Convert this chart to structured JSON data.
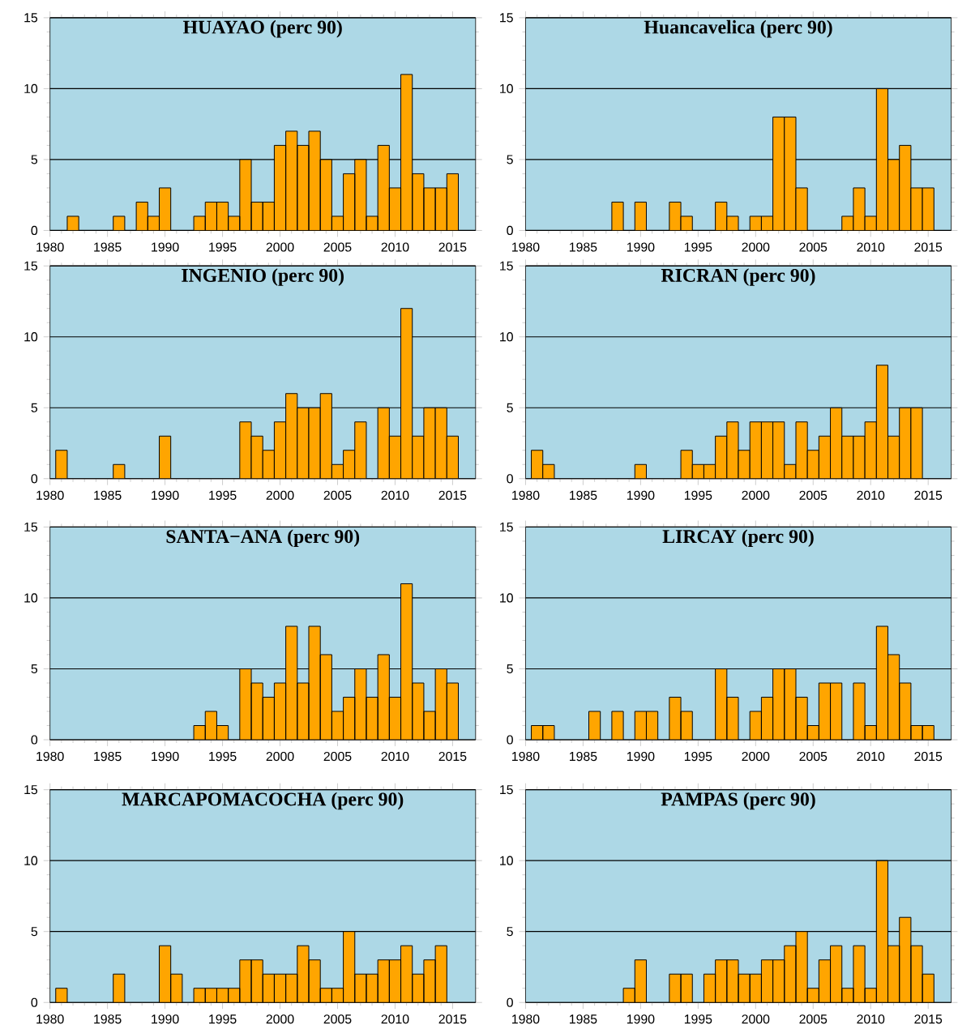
{
  "chart_data": [
    {
      "type": "bar",
      "title": "HUAYAO (perc 90)",
      "color": "#ffa500",
      "xlim": [
        1980,
        2017
      ],
      "xticks": [
        1980,
        1985,
        1990,
        1995,
        2000,
        2005,
        2010,
        2015
      ],
      "ylim": [
        0,
        15
      ],
      "yticks": [
        0,
        5,
        10,
        15
      ],
      "grid": "y",
      "x": [
        1982,
        1986,
        1988,
        1989,
        1990,
        1993,
        1994,
        1995,
        1996,
        1997,
        1998,
        1999,
        2000,
        2001,
        2002,
        2003,
        2004,
        2005,
        2006,
        2007,
        2008,
        2009,
        2010,
        2011,
        2012,
        2013,
        2014,
        2015
      ],
      "values": [
        1,
        1,
        2,
        1,
        3,
        1,
        2,
        2,
        1,
        5,
        2,
        2,
        6,
        7,
        6,
        7,
        5,
        1,
        4,
        5,
        1,
        6,
        3,
        11,
        4,
        3,
        3,
        4
      ]
    },
    {
      "type": "bar",
      "title": "Huancavelica (perc 90)",
      "color": "#ffa500",
      "xlim": [
        1980,
        2017
      ],
      "xticks": [
        1980,
        1985,
        1990,
        1995,
        2000,
        2005,
        2010,
        2015
      ],
      "ylim": [
        0,
        15
      ],
      "yticks": [
        0,
        5,
        10,
        15
      ],
      "grid": "y",
      "x": [
        1988,
        1990,
        1993,
        1994,
        1997,
        1998,
        2000,
        2001,
        2002,
        2003,
        2004,
        2008,
        2009,
        2010,
        2011,
        2012,
        2013,
        2014,
        2015
      ],
      "values": [
        2,
        2,
        2,
        1,
        2,
        1,
        1,
        1,
        8,
        8,
        3,
        1,
        3,
        1,
        10,
        5,
        6,
        3,
        3
      ]
    },
    {
      "type": "bar",
      "title": "INGENIO (perc 90)",
      "color": "#ffa500",
      "xlim": [
        1980,
        2017
      ],
      "xticks": [
        1980,
        1985,
        1990,
        1995,
        2000,
        2005,
        2010,
        2015
      ],
      "ylim": [
        0,
        15
      ],
      "yticks": [
        0,
        5,
        10,
        15
      ],
      "grid": "y",
      "x": [
        1981,
        1986,
        1990,
        1997,
        1998,
        1999,
        2000,
        2001,
        2002,
        2003,
        2004,
        2005,
        2006,
        2007,
        2009,
        2010,
        2011,
        2012,
        2013,
        2014,
        2015
      ],
      "values": [
        2,
        1,
        3,
        4,
        3,
        2,
        4,
        6,
        5,
        5,
        6,
        1,
        2,
        4,
        5,
        3,
        12,
        3,
        5,
        5,
        3
      ]
    },
    {
      "type": "bar",
      "title": "RICRAN (perc 90)",
      "color": "#ffa500",
      "xlim": [
        1980,
        2017
      ],
      "xticks": [
        1980,
        1985,
        1990,
        1995,
        2000,
        2005,
        2010,
        2015
      ],
      "ylim": [
        0,
        15
      ],
      "yticks": [
        0,
        5,
        10,
        15
      ],
      "grid": "y",
      "x": [
        1981,
        1982,
        1990,
        1994,
        1995,
        1996,
        1997,
        1998,
        1999,
        2000,
        2001,
        2002,
        2003,
        2004,
        2005,
        2006,
        2007,
        2008,
        2009,
        2010,
        2011,
        2012,
        2013,
        2014
      ],
      "values": [
        2,
        1,
        1,
        2,
        1,
        1,
        3,
        4,
        2,
        4,
        4,
        4,
        1,
        4,
        2,
        3,
        5,
        3,
        3,
        4,
        8,
        3,
        5,
        5
      ]
    },
    {
      "type": "bar",
      "title": "SANTA−ANA (perc 90)",
      "color": "#ffa500",
      "xlim": [
        1980,
        2017
      ],
      "xticks": [
        1980,
        1985,
        1990,
        1995,
        2000,
        2005,
        2010,
        2015
      ],
      "ylim": [
        0,
        15
      ],
      "yticks": [
        0,
        5,
        10,
        15
      ],
      "grid": "y",
      "x": [
        1993,
        1994,
        1995,
        1997,
        1998,
        1999,
        2000,
        2001,
        2002,
        2003,
        2004,
        2005,
        2006,
        2007,
        2008,
        2009,
        2010,
        2011,
        2012,
        2013,
        2014,
        2015
      ],
      "values": [
        1,
        2,
        1,
        5,
        4,
        3,
        4,
        8,
        4,
        8,
        6,
        2,
        3,
        5,
        3,
        6,
        3,
        11,
        4,
        2,
        5,
        4
      ]
    },
    {
      "type": "bar",
      "title": "LIRCAY (perc 90)",
      "color": "#ffa500",
      "xlim": [
        1980,
        2017
      ],
      "xticks": [
        1980,
        1985,
        1990,
        1995,
        2000,
        2005,
        2010,
        2015
      ],
      "ylim": [
        0,
        15
      ],
      "yticks": [
        0,
        5,
        10,
        15
      ],
      "grid": "y",
      "x": [
        1981,
        1982,
        1986,
        1988,
        1990,
        1991,
        1993,
        1994,
        1997,
        1998,
        2000,
        2001,
        2002,
        2003,
        2004,
        2005,
        2006,
        2007,
        2009,
        2010,
        2011,
        2012,
        2013,
        2014,
        2015
      ],
      "values": [
        1,
        1,
        2,
        2,
        2,
        2,
        3,
        2,
        5,
        3,
        2,
        3,
        5,
        5,
        3,
        1,
        4,
        4,
        4,
        1,
        8,
        6,
        4,
        1,
        1
      ]
    },
    {
      "type": "bar",
      "title": "MARCAPOMACOCHA (perc 90)",
      "color": "#ffa500",
      "xlim": [
        1980,
        2017
      ],
      "xticks": [
        1980,
        1985,
        1990,
        1995,
        2000,
        2005,
        2010,
        2015
      ],
      "ylim": [
        0,
        15
      ],
      "yticks": [
        0,
        5,
        10,
        15
      ],
      "grid": "y",
      "x": [
        1981,
        1986,
        1990,
        1991,
        1993,
        1994,
        1995,
        1996,
        1997,
        1998,
        1999,
        2000,
        2001,
        2002,
        2003,
        2004,
        2005,
        2006,
        2007,
        2008,
        2009,
        2010,
        2011,
        2012,
        2013,
        2014
      ],
      "values": [
        1,
        2,
        4,
        2,
        1,
        1,
        1,
        1,
        3,
        3,
        2,
        2,
        2,
        4,
        3,
        1,
        1,
        5,
        2,
        2,
        3,
        3,
        4,
        2,
        3,
        4
      ]
    },
    {
      "type": "bar",
      "title": "PAMPAS (perc 90)",
      "color": "#ffa500",
      "xlim": [
        1980,
        2017
      ],
      "xticks": [
        1980,
        1985,
        1990,
        1995,
        2000,
        2005,
        2010,
        2015
      ],
      "ylim": [
        0,
        15
      ],
      "yticks": [
        0,
        5,
        10,
        15
      ],
      "grid": "y",
      "x": [
        1989,
        1990,
        1993,
        1994,
        1996,
        1997,
        1998,
        1999,
        2000,
        2001,
        2002,
        2003,
        2004,
        2005,
        2006,
        2007,
        2008,
        2009,
        2010,
        2011,
        2012,
        2013,
        2014,
        2015
      ],
      "values": [
        1,
        3,
        2,
        2,
        2,
        3,
        3,
        2,
        2,
        3,
        3,
        4,
        5,
        1,
        3,
        4,
        1,
        4,
        1,
        10,
        4,
        6,
        4,
        2
      ]
    }
  ]
}
